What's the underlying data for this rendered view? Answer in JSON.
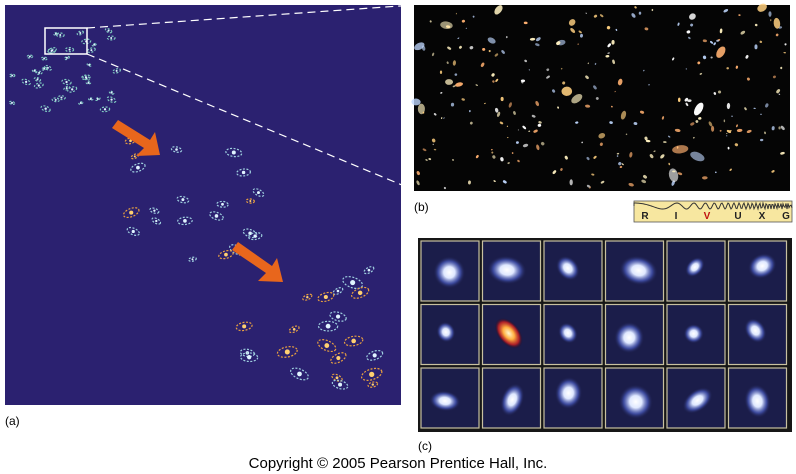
{
  "panels": {
    "a": "(a)",
    "b": "(b)",
    "c": "(c)"
  },
  "spectrum": [
    "R",
    "I",
    "V",
    "U",
    "X",
    "G"
  ],
  "copyright": "Copyright © 2005 Pearson Prentice Hall, Inc."
}
